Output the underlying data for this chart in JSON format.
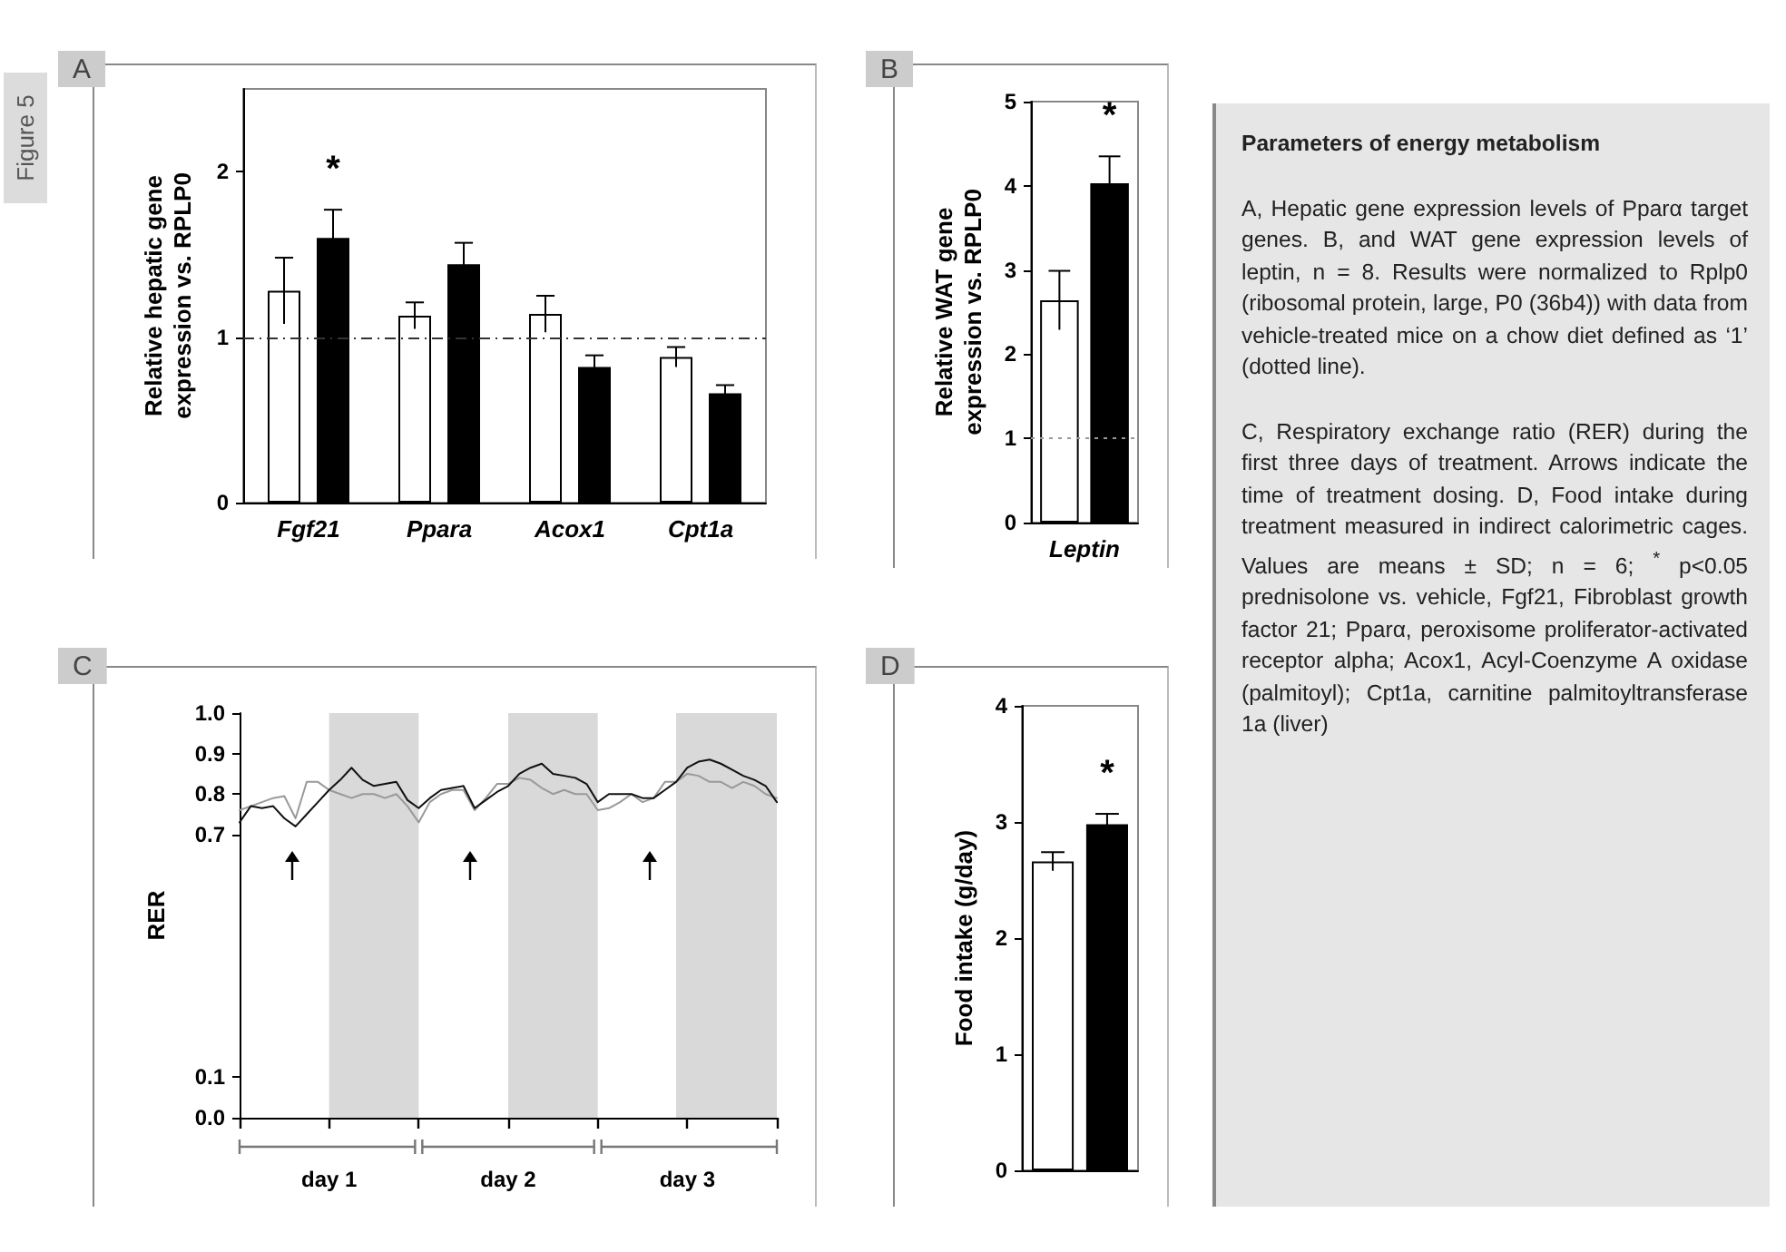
{
  "chart_data": [
    {
      "type": "bar",
      "title": "A",
      "ylabel": "Relative hepatic gene expression vs. RPLP0",
      "categories": [
        "Fgf21",
        "Ppara",
        "Acox1",
        "Cpt1a"
      ],
      "series": [
        {
          "color": "#ffffff",
          "values": [
            1.28,
            1.13,
            1.14,
            0.88
          ],
          "errors": [
            0.2,
            0.08,
            0.11,
            0.06
          ]
        },
        {
          "color": "#000000",
          "values": [
            1.6,
            1.44,
            0.82,
            0.66
          ],
          "errors": [
            0.17,
            0.13,
            0.07,
            0.05
          ]
        }
      ],
      "ylim": [
        0,
        2.5
      ],
      "yticks": [
        0,
        1,
        2
      ],
      "ref_lines": [
        {
          "axis": "y",
          "value": 1,
          "color": "#333333",
          "line_style": "dashed"
        }
      ],
      "annotations": [
        "*"
      ]
    },
    {
      "type": "bar",
      "title": "B",
      "ylabel": "Relative WAT gene expression vs. RPLP0",
      "categories": [
        "Leptin"
      ],
      "series": [
        {
          "color": "#ffffff",
          "values": [
            2.64
          ],
          "errors": [
            0.35
          ]
        },
        {
          "color": "#000000",
          "values": [
            4.03
          ],
          "errors": [
            0.32
          ]
        }
      ],
      "ylim": [
        0,
        5
      ],
      "yticks": [
        0,
        1,
        2,
        3,
        4,
        5
      ],
      "ref_lines": [
        {
          "axis": "y",
          "value": 1,
          "color": "#999999",
          "line_style": "dotted"
        }
      ],
      "annotations": [
        "*"
      ]
    },
    {
      "type": "line",
      "title": "C",
      "ylabel": "RER",
      "categories": [
        null,
        null,
        null,
        null,
        null,
        null,
        null,
        null,
        "day 1",
        null,
        null,
        null,
        null,
        null,
        null,
        null,
        null,
        null,
        null,
        null,
        null,
        null,
        null,
        null,
        "day 2",
        null,
        null,
        null,
        null,
        null,
        null,
        null,
        null,
        null,
        null,
        null,
        null,
        null,
        null,
        null,
        "day 3",
        null,
        null,
        null,
        null,
        null,
        null,
        null,
        null
      ],
      "series": [
        {
          "color": "#999999",
          "values": [
            0.76,
            0.77,
            0.78,
            0.79,
            0.795,
            0.74,
            0.83,
            0.83,
            0.81,
            0.8,
            0.79,
            0.8,
            0.8,
            0.79,
            0.8,
            0.77,
            0.73,
            0.78,
            0.8,
            0.81,
            0.81,
            0.76,
            0.79,
            0.825,
            0.825,
            0.84,
            0.835,
            0.815,
            0.8,
            0.81,
            0.8,
            0.8,
            0.76,
            0.765,
            0.78,
            0.8,
            0.78,
            0.79,
            0.83,
            0.83,
            0.85,
            0.845,
            0.83,
            0.83,
            0.815,
            0.83,
            0.82,
            0.8,
            0.79
          ]
        },
        {
          "color": "#111111",
          "values": [
            0.73,
            0.77,
            0.765,
            0.77,
            0.74,
            0.72,
            0.75,
            0.78,
            0.81,
            0.835,
            0.865,
            0.835,
            0.82,
            0.825,
            0.83,
            0.785,
            0.765,
            0.79,
            0.81,
            0.815,
            0.82,
            0.765,
            0.785,
            0.805,
            0.82,
            0.85,
            0.865,
            0.875,
            0.85,
            0.845,
            0.84,
            0.825,
            0.78,
            0.8,
            0.8,
            0.8,
            0.79,
            0.79,
            0.81,
            0.83,
            0.865,
            0.88,
            0.885,
            0.875,
            0.86,
            0.845,
            0.835,
            0.82,
            0.78
          ]
        }
      ],
      "ylim": [
        0,
        1
      ],
      "yticks": [
        {
          "value": 0,
          "label": "0.0"
        },
        {
          "value": 0.1,
          "label": "0.1"
        },
        {
          "value": 0.7,
          "label": "0.7"
        },
        {
          "value": 0.8,
          "label": "0.8"
        },
        {
          "value": 0.9,
          "label": "0.9"
        },
        {
          "value": 1,
          "label": "1.0"
        }
      ],
      "line_style": "solid",
      "marker": "none"
    },
    {
      "type": "bar",
      "title": "D",
      "ylabel": "Food intake (g/day)",
      "categories": [
        null
      ],
      "series": [
        {
          "color": "#ffffff",
          "values": [
            2.66
          ],
          "errors": [
            0.08
          ]
        },
        {
          "color": "#000000",
          "values": [
            2.98
          ],
          "errors": [
            0.09
          ]
        }
      ],
      "ylim": [
        0,
        4
      ],
      "yticks": [
        0,
        1,
        2,
        3,
        4
      ],
      "annotations": [
        "*"
      ]
    },
    {
      "type": "other",
      "title": "Parameters of energy metabolism",
      "annotations": [
        "Figure 5",
        "A, Hepatic gene expression levels of Pparα target genes. B, and WAT gene expression levels of leptin, n = 8. Results were normalized to Rplp0 (ribosomal protein, large, P0 (36b4)) with data from vehicle-treated mice on a chow diet defined as ‘1’ (dotted line).",
        "C, Respiratory exchange ratio (RER) during the first three days of treatment. Arrows indicate the time of treatment dosing. D, Food intake during treatment measured in indirect calorimetric cages. Values are means ± SD; n = 6; $^{*}$ p<0.05 prednisolone vs. vehicle, Fgf21, Fibroblast growth factor 21; Pparα, peroxisome proliferator-activated receptor alpha; Acox1, Acyl-Coenzyme A oxidase (palmitoyl); Cpt1a, carnitine palmitoyltransferase 1a (liver)"
      ]
    }
  ]
}
